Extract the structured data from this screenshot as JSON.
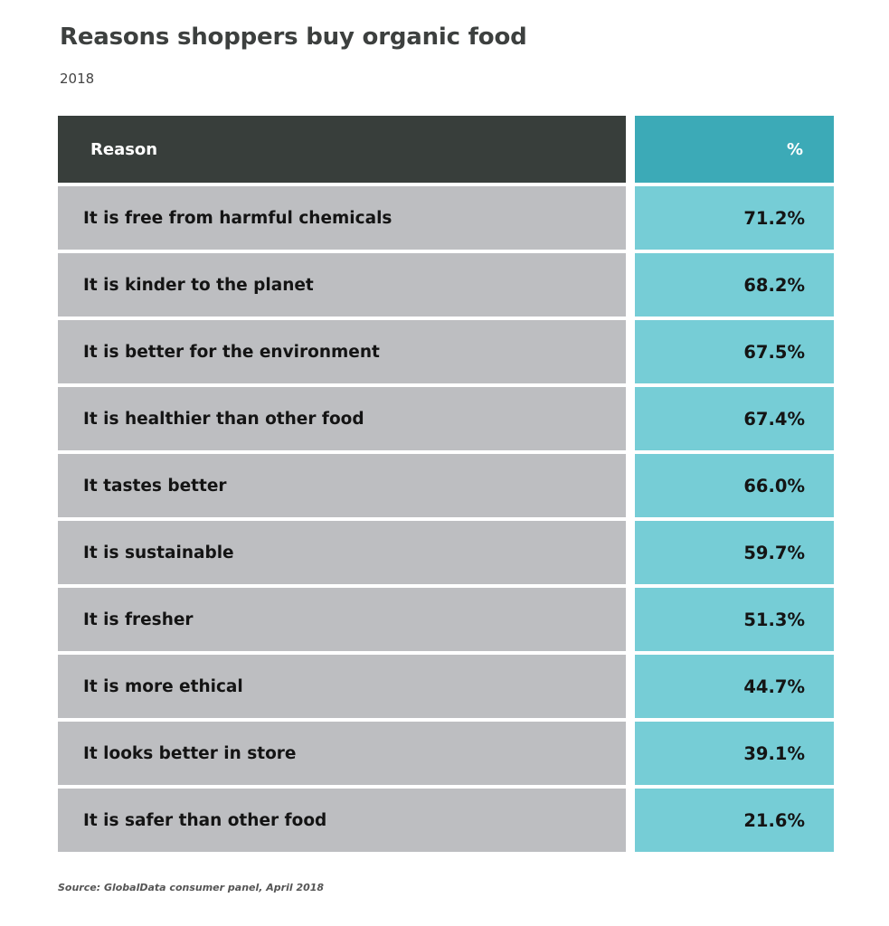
{
  "header": {
    "title": "Reasons shoppers buy organic food",
    "subtitle": "2018"
  },
  "footer": {
    "source": "Source: GlobalData consumer panel, April 2018"
  },
  "colors": {
    "header_left_bg": "#383e3b",
    "header_right_bg": "#3caab7",
    "reason_cell_bg": "#bdbec1",
    "value_cell_bg": "#76cdd6",
    "title_color": "#3d403f"
  },
  "chart_data": {
    "type": "table",
    "title": "Reasons shoppers buy organic food",
    "subtitle": "2018",
    "columns": [
      "Reason",
      "%"
    ],
    "rows": [
      {
        "reason": "It is free from harmful chemicals",
        "value": 71.2,
        "label": "71.2%"
      },
      {
        "reason": "It is kinder to the planet",
        "value": 68.2,
        "label": "68.2%"
      },
      {
        "reason": "It is better for the environment",
        "value": 67.5,
        "label": "67.5%"
      },
      {
        "reason": "It is healthier than other food",
        "value": 67.4,
        "label": "67.4%"
      },
      {
        "reason": "It tastes better",
        "value": 66.0,
        "label": "66.0%"
      },
      {
        "reason": "It is sustainable",
        "value": 59.7,
        "label": "59.7%"
      },
      {
        "reason": "It is fresher",
        "value": 51.3,
        "label": "51.3%"
      },
      {
        "reason": "It is more ethical",
        "value": 44.7,
        "label": "44.7%"
      },
      {
        "reason": "It looks better in store",
        "value": 39.1,
        "label": "39.1%"
      },
      {
        "reason": "It is safer than other food",
        "value": 21.6,
        "label": "21.6%"
      }
    ],
    "source": "Source: GlobalData consumer panel, April 2018"
  }
}
